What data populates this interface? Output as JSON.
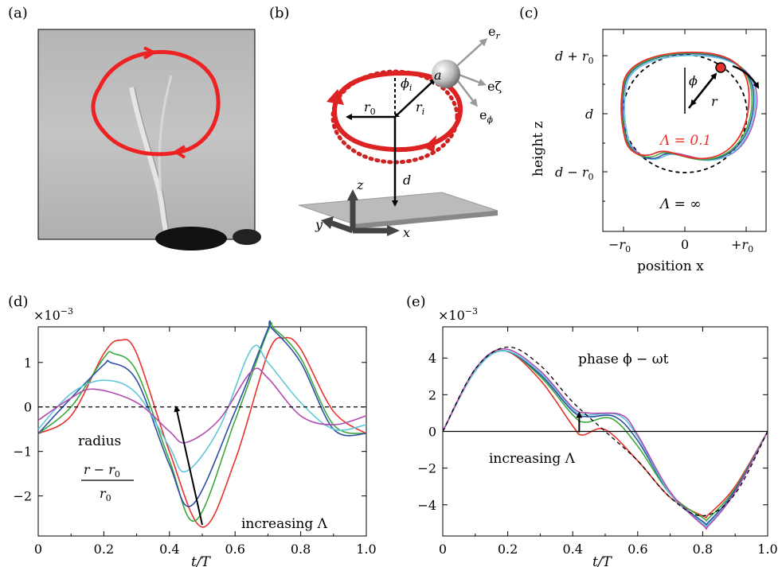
{
  "panels": {
    "a": {
      "label": "(a)"
    },
    "b": {
      "label": "(b)",
      "e_r": "e",
      "e_r_sub": "r",
      "e_zeta": "eζ",
      "e_phi": "e",
      "e_phi_sub": "ϕ",
      "a": "a",
      "phi_i": "ϕ",
      "phi_i_sub": "i",
      "r0": "r",
      "r0_sub": "0",
      "ri": "r",
      "ri_sub": "i",
      "z": "z",
      "d": "d",
      "y": "y",
      "x": "x"
    },
    "c": {
      "label": "(c)",
      "ylabel": "height z",
      "xlabel": "position x",
      "yticks": [
        "d + r",
        "d",
        "d − r"
      ],
      "xticks": [
        "−r",
        "0",
        "+r"
      ],
      "lambda_red": "Λ = 0.1",
      "lambda_inf": "Λ = ∞",
      "phi": "ϕ",
      "r": "r"
    },
    "d": {
      "label": "(d)",
      "scale": "×10",
      "scale_exp": "−3",
      "text_radius": "radius",
      "frac_num": "r − r",
      "frac_den": "r",
      "text_increasing": "increasing Λ",
      "xlabel": "t/T",
      "yticks": [
        "1",
        "0",
        "−1",
        "−2"
      ],
      "xticks": [
        "0",
        "0.2",
        "0.4",
        "0.6",
        "0.8",
        "1.0"
      ]
    },
    "e": {
      "label": "(e)",
      "scale": "×10",
      "scale_exp": "−3",
      "text_phase": "phase ϕ − ωt",
      "text_increasing": "increasing Λ",
      "xlabel": "t/T",
      "yticks": [
        "4",
        "2",
        "0",
        "−2",
        "−4"
      ],
      "xticks": [
        "0",
        "0.2",
        "0.4",
        "0.6",
        "0.8",
        "1.0"
      ]
    }
  },
  "colors": {
    "red": "#e8312c",
    "green": "#3aa83a",
    "blue": "#2c4ea8",
    "cyan": "#5ec8d8",
    "magenta": "#b04cb0",
    "black": "#000000"
  },
  "chart_data": [
    {
      "type": "line",
      "panel": "d",
      "xlabel": "t/T",
      "ylabel": "radius (r − r0)/r0",
      "ylim": [
        -2.9,
        1.8
      ],
      "xlim": [
        0,
        1
      ],
      "y_scale_note": "×10^−3",
      "series": [
        {
          "color": "#e8312c",
          "x": [
            0,
            0.1,
            0.2,
            0.25,
            0.3,
            0.4,
            0.5,
            0.6,
            0.7,
            0.75,
            0.8,
            0.9,
            1.0
          ],
          "y": [
            -0.6,
            -0.2,
            1.2,
            1.5,
            1.2,
            -1.0,
            -2.7,
            -1.2,
            1.2,
            1.55,
            1.3,
            -0.1,
            -0.6
          ]
        },
        {
          "color": "#3aa83a",
          "x": [
            0,
            0.1,
            0.2,
            0.23,
            0.3,
            0.4,
            0.48,
            0.6,
            0.7,
            0.72,
            0.8,
            0.9,
            1.0
          ],
          "y": [
            -0.6,
            0.0,
            1.1,
            1.2,
            0.8,
            -1.2,
            -2.55,
            -0.3,
            1.7,
            1.75,
            1.1,
            -0.4,
            -0.6
          ]
        },
        {
          "color": "#2c4ea8",
          "x": [
            0,
            0.1,
            0.2,
            0.22,
            0.3,
            0.4,
            0.47,
            0.6,
            0.7,
            0.71,
            0.8,
            0.9,
            1.0
          ],
          "y": [
            -0.6,
            0.2,
            0.95,
            1.0,
            0.6,
            -1.3,
            -2.2,
            -0.1,
            1.75,
            1.78,
            1.0,
            -0.5,
            -0.6
          ]
        },
        {
          "color": "#5ec8d8",
          "x": [
            0,
            0.1,
            0.2,
            0.3,
            0.4,
            0.45,
            0.55,
            0.65,
            0.7,
            0.8,
            0.9,
            1.0
          ],
          "y": [
            -0.5,
            0.3,
            0.6,
            0.3,
            -0.9,
            -1.45,
            -0.5,
            1.3,
            1.0,
            0.1,
            -0.5,
            -0.4
          ]
        },
        {
          "color": "#b04cb0",
          "x": [
            0,
            0.1,
            0.17,
            0.3,
            0.4,
            0.45,
            0.55,
            0.65,
            0.7,
            0.8,
            0.9,
            1.0
          ],
          "y": [
            -0.3,
            0.2,
            0.4,
            0.1,
            -0.55,
            -0.8,
            -0.3,
            0.8,
            0.65,
            -0.2,
            -0.4,
            -0.2
          ]
        },
        {
          "color": "#000000",
          "dashed": true,
          "x": [
            0,
            1
          ],
          "y": [
            0,
            0
          ]
        }
      ]
    },
    {
      "type": "line",
      "panel": "e",
      "xlabel": "t/T",
      "ylabel": "phase ϕ − ωt",
      "ylim": [
        -5.7,
        5.7
      ],
      "xlim": [
        0,
        1
      ],
      "y_scale_note": "×10^−3",
      "series": [
        {
          "color": "#e8312c",
          "x": [
            0,
            0.1,
            0.19,
            0.3,
            0.4,
            0.43,
            0.5,
            0.6,
            0.7,
            0.8,
            0.82,
            0.9,
            1.0
          ],
          "y": [
            0,
            3.3,
            4.4,
            2.8,
            0.3,
            -0.2,
            0.1,
            -1.6,
            -3.6,
            -4.6,
            -4.5,
            -3.0,
            0
          ]
        },
        {
          "color": "#3aa83a",
          "x": [
            0,
            0.1,
            0.19,
            0.3,
            0.4,
            0.44,
            0.52,
            0.6,
            0.7,
            0.8,
            0.82,
            0.9,
            1.0
          ],
          "y": [
            0,
            3.3,
            4.4,
            3.0,
            0.9,
            0.5,
            0.7,
            -0.8,
            -3.4,
            -4.7,
            -4.7,
            -3.1,
            0
          ]
        },
        {
          "color": "#2c4ea8",
          "x": [
            0,
            0.1,
            0.19,
            0.3,
            0.4,
            0.45,
            0.53,
            0.6,
            0.7,
            0.8,
            0.82,
            0.9,
            1.0
          ],
          "y": [
            0,
            3.3,
            4.4,
            3.1,
            1.1,
            0.8,
            0.8,
            -0.5,
            -3.4,
            -4.9,
            -4.9,
            -3.2,
            0
          ]
        },
        {
          "color": "#5ec8d8",
          "x": [
            0,
            0.1,
            0.19,
            0.3,
            0.4,
            0.45,
            0.54,
            0.6,
            0.7,
            0.8,
            0.82,
            0.9,
            1.0
          ],
          "y": [
            0,
            3.3,
            4.4,
            3.2,
            1.2,
            0.9,
            0.9,
            -0.3,
            -3.4,
            -5.0,
            -5.0,
            -3.3,
            0
          ]
        },
        {
          "color": "#b04cb0",
          "x": [
            0,
            0.1,
            0.19,
            0.3,
            0.4,
            0.45,
            0.55,
            0.6,
            0.7,
            0.8,
            0.82,
            0.9,
            1.0
          ],
          "y": [
            0,
            3.4,
            4.5,
            3.3,
            1.3,
            1.0,
            0.9,
            -0.2,
            -3.3,
            -5.1,
            -5.1,
            -3.3,
            0
          ]
        },
        {
          "color": "#000000",
          "dashed": true,
          "x": [
            0,
            0.1,
            0.2,
            0.3,
            0.4,
            0.5,
            0.6,
            0.7,
            0.8,
            0.9,
            1.0
          ],
          "y": [
            0,
            3.4,
            4.6,
            3.6,
            1.6,
            0,
            -1.6,
            -3.6,
            -4.6,
            -3.4,
            0
          ]
        },
        {
          "color": "#000000",
          "x": [
            0,
            1
          ],
          "y": [
            0,
            0
          ]
        }
      ]
    }
  ]
}
